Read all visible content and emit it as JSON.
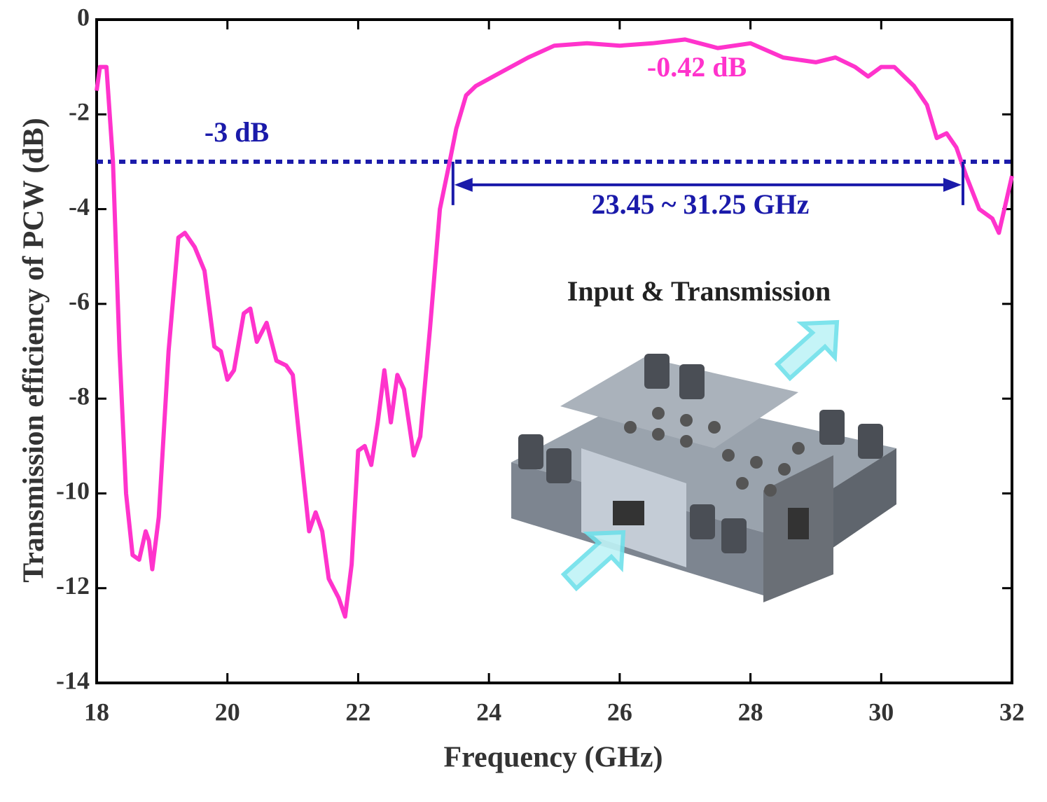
{
  "chart_data": {
    "type": "line",
    "x_label": "Frequency (GHz)",
    "y_label": "Transmission efficiency of PCW (dB)",
    "color": "#ff33cc",
    "x": [
      18.0,
      18.05,
      18.15,
      18.25,
      18.35,
      18.45,
      18.55,
      18.65,
      18.75,
      18.8,
      18.85,
      18.95,
      19.1,
      19.25,
      19.35,
      19.5,
      19.65,
      19.8,
      19.9,
      20.0,
      20.1,
      20.25,
      20.35,
      20.45,
      20.6,
      20.75,
      20.9,
      21.0,
      21.15,
      21.25,
      21.35,
      21.45,
      21.55,
      21.7,
      21.8,
      21.9,
      22.0,
      22.1,
      22.2,
      22.3,
      22.4,
      22.5,
      22.6,
      22.7,
      22.85,
      22.95,
      23.1,
      23.25,
      23.4,
      23.5,
      23.65,
      23.8,
      24.2,
      24.6,
      25.0,
      25.5,
      26.0,
      26.5,
      27.0,
      27.5,
      28.0,
      28.5,
      29.0,
      29.3,
      29.6,
      29.8,
      30.0,
      30.2,
      30.5,
      30.7,
      30.85,
      31.0,
      31.15,
      31.3,
      31.5,
      31.7,
      31.8,
      31.9,
      32.0
    ],
    "values": [
      -1.5,
      -1.0,
      -1.0,
      -3,
      -7,
      -10,
      -11.3,
      -11.4,
      -10.8,
      -11.0,
      -11.6,
      -10.5,
      -7,
      -4.6,
      -4.5,
      -4.8,
      -5.3,
      -6.9,
      -7.0,
      -7.6,
      -7.4,
      -6.2,
      -6.1,
      -6.8,
      -6.4,
      -7.2,
      -7.3,
      -7.5,
      -9.5,
      -10.8,
      -10.4,
      -10.8,
      -11.8,
      -12.2,
      -12.6,
      -11.5,
      -9.1,
      -9.0,
      -9.4,
      -8.5,
      -7.4,
      -8.5,
      -7.5,
      -7.8,
      -9.2,
      -8.8,
      -6.5,
      -4,
      -3,
      -2.3,
      -1.6,
      -1.4,
      -1.1,
      -0.8,
      -0.55,
      -0.5,
      -0.55,
      -0.5,
      -0.42,
      -0.6,
      -0.5,
      -0.8,
      -0.9,
      -0.8,
      -1.0,
      -1.2,
      -1.0,
      -1.0,
      -1.4,
      -1.8,
      -2.5,
      -2.4,
      -2.7,
      -3.3,
      -4.0,
      -4.2,
      -4.5,
      -3.9,
      -3.3
    ],
    "xlim": [
      18,
      32
    ],
    "ylim": [
      -14,
      0
    ],
    "xticks": [
      18,
      20,
      22,
      24,
      26,
      28,
      30,
      32
    ],
    "yticks": [
      0,
      -2,
      -4,
      -6,
      -8,
      -10,
      -12,
      -14
    ],
    "threshold": -3,
    "threshold_color": "#1a1aaa",
    "band": [
      23.45,
      31.25
    ],
    "annotations": [
      {
        "text": "-0.42 dB",
        "color": "#ff33cc"
      },
      {
        "text": "-3 dB",
        "color": "#1a1aaa"
      },
      {
        "text": "23.45 ~ 31.25 GHz",
        "color": "#1a1aaa"
      },
      {
        "text": "Input & Transmission",
        "color": "#222222"
      }
    ]
  }
}
